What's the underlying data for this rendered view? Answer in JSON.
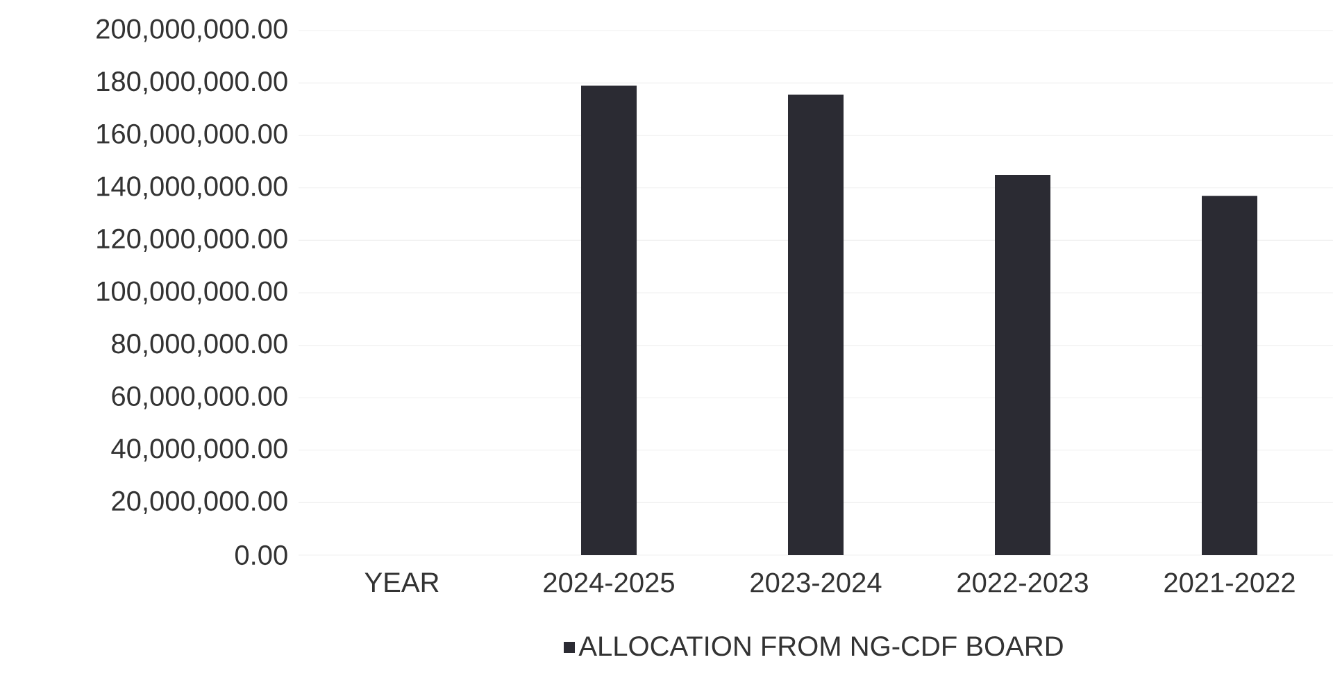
{
  "chart_data": {
    "type": "bar",
    "categories": [
      "YEAR",
      "2024-2025",
      "2023-2024",
      "2022-2023",
      "2021-2022"
    ],
    "series": [
      {
        "name": "ALLOCATION FROM NG-CDF BOARD",
        "color": "#2b2b33",
        "values": [
          null,
          179000000,
          175500000,
          145000000,
          137000000
        ]
      }
    ],
    "ylim": [
      0,
      200000000
    ],
    "yticks": [
      {
        "value": 0,
        "label": "0.00"
      },
      {
        "value": 20000000,
        "label": "20,000,000.00"
      },
      {
        "value": 40000000,
        "label": "40,000,000.00"
      },
      {
        "value": 60000000,
        "label": "60,000,000.00"
      },
      {
        "value": 80000000,
        "label": "80,000,000.00"
      },
      {
        "value": 100000000,
        "label": "100,000,000.00"
      },
      {
        "value": 120000000,
        "label": "120,000,000.00"
      },
      {
        "value": 140000000,
        "label": "140,000,000.00"
      },
      {
        "value": 160000000,
        "label": "160,000,000.00"
      },
      {
        "value": 180000000,
        "label": "180,000,000.00"
      },
      {
        "value": 200000000,
        "label": "200,000,000.00"
      }
    ],
    "grid": "y",
    "legend": "bottom"
  }
}
